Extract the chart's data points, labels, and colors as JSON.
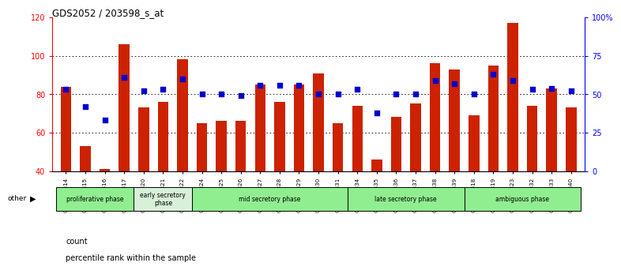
{
  "title": "GDS2052 / 203598_s_at",
  "samples": [
    "GSM109814",
    "GSM109815",
    "GSM109816",
    "GSM109817",
    "GSM109820",
    "GSM109821",
    "GSM109822",
    "GSM109824",
    "GSM109825",
    "GSM109826",
    "GSM109827",
    "GSM109828",
    "GSM109829",
    "GSM109830",
    "GSM109831",
    "GSM109834",
    "GSM109835",
    "GSM109836",
    "GSM109837",
    "GSM109838",
    "GSM109839",
    "GSM109818",
    "GSM109819",
    "GSM109823",
    "GSM109832",
    "GSM109833",
    "GSM109840"
  ],
  "counts": [
    84,
    53,
    41,
    106,
    73,
    76,
    98,
    65,
    66,
    66,
    85,
    76,
    85,
    91,
    65,
    74,
    46,
    68,
    75,
    96,
    93,
    69,
    95,
    117,
    74,
    83,
    73
  ],
  "percentiles": [
    53,
    42,
    33,
    61,
    52,
    53,
    60,
    50,
    50,
    49,
    56,
    56,
    56,
    50,
    50,
    53,
    38,
    50,
    50,
    59,
    57,
    50,
    63,
    59,
    53,
    54,
    52
  ],
  "phases": [
    {
      "label": "proliferative phase",
      "color": "#90ee90",
      "start": 0,
      "end": 4
    },
    {
      "label": "early secretory\nphase",
      "color": "#d8f0d8",
      "start": 4,
      "end": 7
    },
    {
      "label": "mid secretory phase",
      "color": "#90ee90",
      "start": 7,
      "end": 15
    },
    {
      "label": "late secretory phase",
      "color": "#90ee90",
      "start": 15,
      "end": 21
    },
    {
      "label": "ambiguous phase",
      "color": "#90ee90",
      "start": 21,
      "end": 27
    }
  ],
  "bar_color": "#cc2200",
  "dot_color": "#0000cc",
  "ylim_left": [
    40,
    120
  ],
  "ylim_right": [
    0,
    100
  ],
  "grid_values": [
    60,
    80,
    100
  ],
  "left_ticks": [
    40,
    60,
    80,
    100,
    120
  ],
  "right_ticks": [
    0,
    25,
    50,
    75,
    100
  ],
  "right_tick_labels": [
    "0",
    "25",
    "50",
    "75",
    "100%"
  ]
}
